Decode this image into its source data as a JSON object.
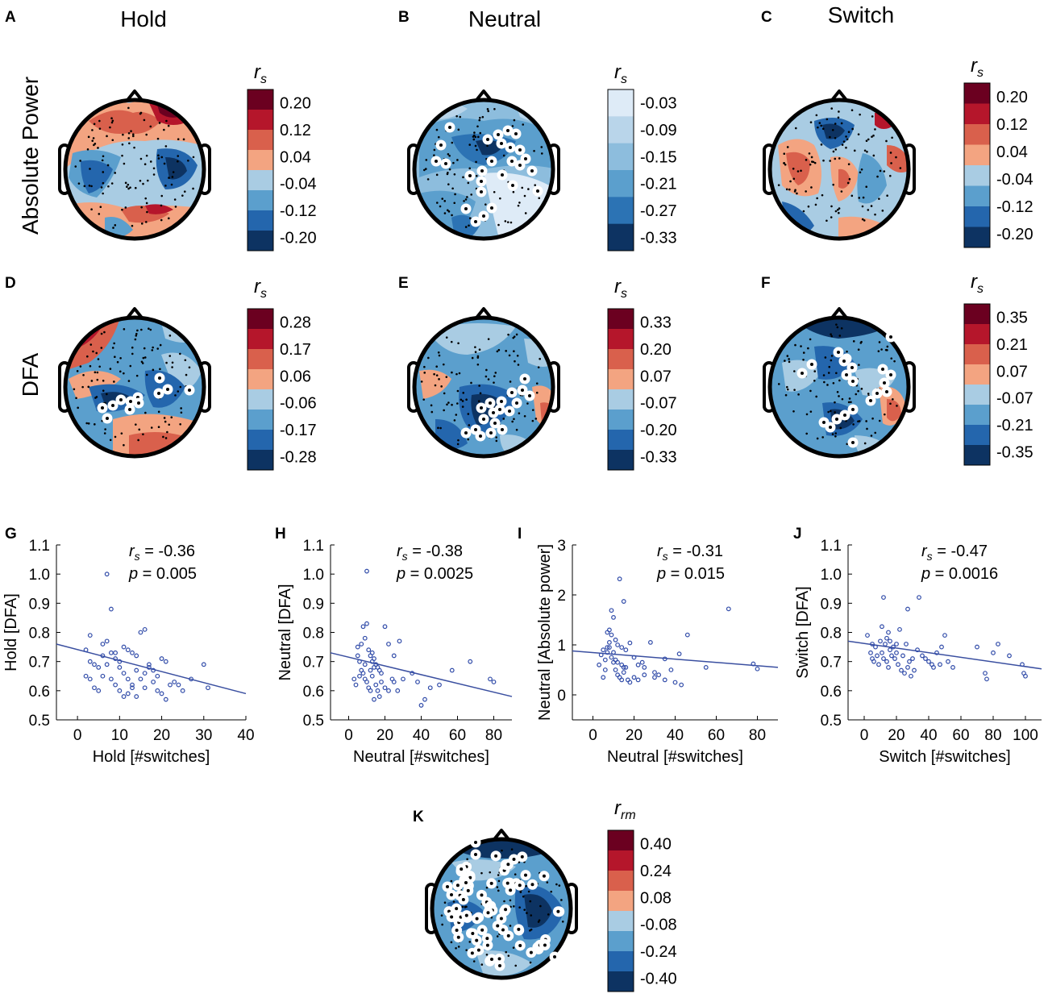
{
  "column_titles": [
    "Hold",
    "Neutral",
    "Switch"
  ],
  "row_titles": [
    "Absolute Power",
    "DFA"
  ],
  "colorbar_symbols": {
    "rs_main": "r",
    "rs_sub": "s",
    "rrm_main": "r",
    "rrm_sub": "rm"
  },
  "panels": [
    {
      "letter": "A",
      "colorbar_ticks": [
        "0.20",
        "0.12",
        "0.04",
        "-0.04",
        "-0.12",
        "-0.20"
      ],
      "colorbar_palette": "diverging"
    },
    {
      "letter": "B",
      "colorbar_ticks": [
        "-0.03",
        "-0.09",
        "-0.15",
        "-0.21",
        "-0.27",
        "-0.33"
      ],
      "colorbar_palette": "blues"
    },
    {
      "letter": "C",
      "colorbar_ticks": [
        "0.20",
        "0.12",
        "0.04",
        "-0.04",
        "-0.12",
        "-0.20"
      ],
      "colorbar_palette": "diverging"
    },
    {
      "letter": "D",
      "colorbar_ticks": [
        "0.28",
        "0.17",
        "0.06",
        "-0.06",
        "-0.17",
        "-0.28"
      ],
      "colorbar_palette": "diverging"
    },
    {
      "letter": "E",
      "colorbar_ticks": [
        "0.33",
        "0.20",
        "0.07",
        "-0.07",
        "-0.20",
        "-0.33"
      ],
      "colorbar_palette": "diverging"
    },
    {
      "letter": "F",
      "colorbar_ticks": [
        "0.35",
        "0.21",
        "0.07",
        "-0.07",
        "-0.21",
        "-0.35"
      ],
      "colorbar_palette": "diverging"
    },
    {
      "letter": "K",
      "colorbar_ticks": [
        "0.40",
        "0.24",
        "0.08",
        "-0.08",
        "-0.24",
        "-0.40"
      ],
      "colorbar_palette": "diverging"
    }
  ],
  "palettes": {
    "diverging": [
      "#6b0020",
      "#b5162b",
      "#d9604c",
      "#f3a481",
      "#a9cce3",
      "#5b9fcd",
      "#2466ad",
      "#0d3362"
    ],
    "blues": [
      "#deebf7",
      "#b9d5ea",
      "#8dbddd",
      "#5b9fcd",
      "#2c73b4",
      "#0d3362"
    ]
  },
  "chart_data": [
    {
      "type": "scatter",
      "letter": "G",
      "title": "",
      "xlabel": "Hold [#switches]",
      "ylabel": "Hold [DFA]",
      "xlim": [
        -5,
        40
      ],
      "ylim": [
        0.5,
        1.1
      ],
      "xticks": [
        0,
        10,
        20,
        30,
        40
      ],
      "xtick_labels": [
        "0",
        "10",
        "20",
        "30",
        "40"
      ],
      "yticks": [
        0.5,
        0.6,
        0.7,
        0.8,
        0.9,
        1.0,
        1.1
      ],
      "ytick_labels": [
        "0.5",
        "0.6",
        "0.7",
        "0.8",
        "0.9",
        "1.0",
        "1.1"
      ],
      "stat_r": "= -0.36",
      "stat_p": "= 0.005",
      "fit": [
        [
          -5,
          0.76
        ],
        [
          40,
          0.59
        ]
      ],
      "points": [
        [
          7,
          1.0
        ],
        [
          8,
          0.88
        ],
        [
          3,
          0.79
        ],
        [
          6,
          0.76
        ],
        [
          7,
          0.77
        ],
        [
          8,
          0.73
        ],
        [
          9,
          0.71
        ],
        [
          10,
          0.7
        ],
        [
          11,
          0.75
        ],
        [
          12,
          0.74
        ],
        [
          13,
          0.73
        ],
        [
          14,
          0.72
        ],
        [
          15,
          0.8
        ],
        [
          16,
          0.81
        ],
        [
          17,
          0.69
        ],
        [
          18,
          0.67
        ],
        [
          19,
          0.65
        ],
        [
          20,
          0.71
        ],
        [
          21,
          0.7
        ],
        [
          22,
          0.62
        ],
        [
          23,
          0.63
        ],
        [
          24,
          0.62
        ],
        [
          25,
          0.6
        ],
        [
          27,
          0.64
        ],
        [
          30,
          0.69
        ],
        [
          31,
          0.61
        ],
        [
          2,
          0.74
        ],
        [
          3,
          0.7
        ],
        [
          4,
          0.69
        ],
        [
          5,
          0.68
        ],
        [
          6,
          0.72
        ],
        [
          7,
          0.69
        ],
        [
          9,
          0.73
        ],
        [
          10,
          0.68
        ],
        [
          11,
          0.66
        ],
        [
          12,
          0.64
        ],
        [
          13,
          0.62
        ],
        [
          14,
          0.67
        ],
        [
          15,
          0.64
        ],
        [
          16,
          0.61
        ],
        [
          18,
          0.63
        ],
        [
          20,
          0.59
        ],
        [
          21,
          0.57
        ],
        [
          4,
          0.61
        ],
        [
          5,
          0.6
        ],
        [
          6,
          0.65
        ],
        [
          8,
          0.64
        ],
        [
          9,
          0.62
        ],
        [
          10,
          0.6
        ],
        [
          11,
          0.58
        ],
        [
          12,
          0.59
        ],
        [
          13,
          0.61
        ],
        [
          3,
          0.64
        ],
        [
          14,
          0.58
        ],
        [
          16,
          0.66
        ],
        [
          17,
          0.68
        ],
        [
          19,
          0.6
        ],
        [
          2,
          0.65
        ]
      ]
    },
    {
      "type": "scatter",
      "letter": "H",
      "title": "",
      "xlabel": "Neutral [#switches]",
      "ylabel": "Neutral [DFA]",
      "xlim": [
        -10,
        90
      ],
      "ylim": [
        0.5,
        1.1
      ],
      "xticks": [
        0,
        20,
        40,
        60,
        80
      ],
      "xtick_labels": [
        "0",
        "20",
        "40",
        "60",
        "80"
      ],
      "yticks": [
        0.5,
        0.6,
        0.7,
        0.8,
        0.9,
        1.0,
        1.1
      ],
      "ytick_labels": [
        "0.5",
        "0.6",
        "0.7",
        "0.8",
        "0.9",
        "1.0",
        "1.1"
      ],
      "stat_r": "= -0.38",
      "stat_p": "= 0.0025",
      "fit": [
        [
          -10,
          0.73
        ],
        [
          90,
          0.58
        ]
      ],
      "points": [
        [
          10,
          1.01
        ],
        [
          8,
          0.82
        ],
        [
          10,
          0.83
        ],
        [
          5,
          0.75
        ],
        [
          7,
          0.76
        ],
        [
          9,
          0.78
        ],
        [
          11,
          0.74
        ],
        [
          12,
          0.72
        ],
        [
          13,
          0.7
        ],
        [
          14,
          0.71
        ],
        [
          15,
          0.69
        ],
        [
          16,
          0.68
        ],
        [
          17,
          0.67
        ],
        [
          18,
          0.66
        ],
        [
          20,
          0.82
        ],
        [
          22,
          0.76
        ],
        [
          25,
          0.72
        ],
        [
          28,
          0.77
        ],
        [
          30,
          0.64
        ],
        [
          35,
          0.66
        ],
        [
          38,
          0.63
        ],
        [
          40,
          0.55
        ],
        [
          42,
          0.57
        ],
        [
          45,
          0.61
        ],
        [
          50,
          0.62
        ],
        [
          57,
          0.67
        ],
        [
          67,
          0.7
        ],
        [
          78,
          0.64
        ],
        [
          80,
          0.63
        ],
        [
          3,
          0.64
        ],
        [
          4,
          0.62
        ],
        [
          6,
          0.65
        ],
        [
          7,
          0.67
        ],
        [
          8,
          0.66
        ],
        [
          9,
          0.64
        ],
        [
          10,
          0.63
        ],
        [
          11,
          0.61
        ],
        [
          12,
          0.6
        ],
        [
          13,
          0.65
        ],
        [
          14,
          0.68
        ],
        [
          15,
          0.62
        ],
        [
          16,
          0.6
        ],
        [
          18,
          0.63
        ],
        [
          20,
          0.61
        ],
        [
          22,
          0.6
        ],
        [
          25,
          0.63
        ],
        [
          27,
          0.6
        ],
        [
          12,
          0.67
        ],
        [
          13,
          0.73
        ],
        [
          5,
          0.72
        ],
        [
          6,
          0.7
        ],
        [
          9,
          0.69
        ],
        [
          17,
          0.58
        ],
        [
          14,
          0.57
        ],
        [
          24,
          0.64
        ]
      ]
    },
    {
      "type": "scatter",
      "letter": "I",
      "title": "",
      "xlabel": "Neutral [#switches]",
      "ylabel": "Neutral [Absolute power]",
      "xlim": [
        -10,
        90
      ],
      "ylim": [
        -0.5,
        3
      ],
      "xticks": [
        0,
        20,
        40,
        60,
        80
      ],
      "xtick_labels": [
        "0",
        "20",
        "40",
        "60",
        "80"
      ],
      "yticks": [
        0,
        1,
        2,
        3
      ],
      "ytick_labels": [
        "0",
        "1",
        "2",
        "3"
      ],
      "stat_r": "= -0.31",
      "stat_p": "= 0.015",
      "fit": [
        [
          -10,
          0.88
        ],
        [
          90,
          0.55
        ]
      ],
      "points": [
        [
          13,
          2.32
        ],
        [
          15,
          1.87
        ],
        [
          9,
          1.69
        ],
        [
          10,
          1.55
        ],
        [
          8,
          1.3
        ],
        [
          7,
          1.25
        ],
        [
          9,
          1.2
        ],
        [
          11,
          1.1
        ],
        [
          12,
          1.0
        ],
        [
          14,
          0.95
        ],
        [
          16,
          0.9
        ],
        [
          18,
          1.04
        ],
        [
          20,
          0.75
        ],
        [
          22,
          0.6
        ],
        [
          25,
          0.55
        ],
        [
          28,
          1.05
        ],
        [
          30,
          0.45
        ],
        [
          32,
          0.4
        ],
        [
          35,
          0.72
        ],
        [
          38,
          0.5
        ],
        [
          42,
          0.82
        ],
        [
          46,
          1.2
        ],
        [
          55,
          0.55
        ],
        [
          66,
          1.72
        ],
        [
          78,
          0.62
        ],
        [
          80,
          0.52
        ],
        [
          3,
          0.6
        ],
        [
          4,
          0.8
        ],
        [
          5,
          0.9
        ],
        [
          6,
          0.7
        ],
        [
          7,
          0.85
        ],
        [
          8,
          0.95
        ],
        [
          9,
          0.75
        ],
        [
          10,
          0.65
        ],
        [
          11,
          0.5
        ],
        [
          12,
          0.4
        ],
        [
          13,
          0.35
        ],
        [
          14,
          0.3
        ],
        [
          15,
          0.45
        ],
        [
          16,
          0.55
        ],
        [
          17,
          0.3
        ],
        [
          18,
          0.25
        ],
        [
          20,
          0.35
        ],
        [
          22,
          0.3
        ],
        [
          25,
          0.4
        ],
        [
          30,
          0.35
        ],
        [
          35,
          0.3
        ],
        [
          40,
          0.25
        ],
        [
          43,
          0.2
        ],
        [
          5,
          0.35
        ],
        [
          6,
          0.5
        ],
        [
          7,
          0.95
        ],
        [
          8,
          1.05
        ],
        [
          10,
          0.85
        ],
        [
          11,
          0.7
        ],
        [
          12,
          0.65
        ],
        [
          14,
          0.6
        ],
        [
          15,
          0.55
        ],
        [
          24,
          0.65
        ]
      ]
    },
    {
      "type": "scatter",
      "letter": "J",
      "title": "",
      "xlabel": "Switch [#switches]",
      "ylabel": "Switch [DFA]",
      "xlim": [
        -10,
        110
      ],
      "ylim": [
        0.5,
        1.1
      ],
      "xticks": [
        0,
        20,
        40,
        60,
        80,
        100
      ],
      "xtick_labels": [
        "0",
        "20",
        "40",
        "60",
        "80",
        "100"
      ],
      "yticks": [
        0.5,
        0.6,
        0.7,
        0.8,
        0.9,
        1.0,
        1.1
      ],
      "ytick_labels": [
        "0.5",
        "0.6",
        "0.7",
        "0.8",
        "0.9",
        "1.0",
        "1.1"
      ],
      "stat_r": "= -0.47",
      "stat_p": "= 0.0016",
      "fit": [
        [
          -10,
          0.77
        ],
        [
          110,
          0.675
        ]
      ],
      "points": [
        [
          12,
          0.92
        ],
        [
          34,
          0.92
        ],
        [
          27,
          0.88
        ],
        [
          22,
          0.81
        ],
        [
          11,
          0.82
        ],
        [
          15,
          0.8
        ],
        [
          2,
          0.79
        ],
        [
          5,
          0.76
        ],
        [
          7,
          0.75
        ],
        [
          10,
          0.77
        ],
        [
          13,
          0.76
        ],
        [
          16,
          0.74
        ],
        [
          18,
          0.75
        ],
        [
          20,
          0.73
        ],
        [
          24,
          0.72
        ],
        [
          26,
          0.76
        ],
        [
          28,
          0.7
        ],
        [
          30,
          0.71
        ],
        [
          33,
          0.74
        ],
        [
          36,
          0.72
        ],
        [
          40,
          0.7
        ],
        [
          42,
          0.69
        ],
        [
          45,
          0.73
        ],
        [
          48,
          0.75
        ],
        [
          50,
          0.79
        ],
        [
          52,
          0.7
        ],
        [
          55,
          0.68
        ],
        [
          70,
          0.75
        ],
        [
          75,
          0.66
        ],
        [
          76,
          0.64
        ],
        [
          80,
          0.73
        ],
        [
          83,
          0.76
        ],
        [
          90,
          0.72
        ],
        [
          98,
          0.69
        ],
        [
          99,
          0.66
        ],
        [
          100,
          0.65
        ],
        [
          4,
          0.73
        ],
        [
          6,
          0.7
        ],
        [
          8,
          0.72
        ],
        [
          9,
          0.69
        ],
        [
          11,
          0.73
        ],
        [
          12,
          0.71
        ],
        [
          14,
          0.7
        ],
        [
          15,
          0.68
        ],
        [
          17,
          0.72
        ],
        [
          19,
          0.71
        ],
        [
          21,
          0.69
        ],
        [
          23,
          0.67
        ],
        [
          25,
          0.66
        ],
        [
          27,
          0.68
        ],
        [
          29,
          0.65
        ],
        [
          31,
          0.67
        ],
        [
          38,
          0.71
        ],
        [
          43,
          0.68
        ],
        [
          47,
          0.69
        ],
        [
          14,
          0.78
        ],
        [
          16,
          0.77
        ],
        [
          20,
          0.76
        ],
        [
          5,
          0.71
        ]
      ]
    }
  ]
}
